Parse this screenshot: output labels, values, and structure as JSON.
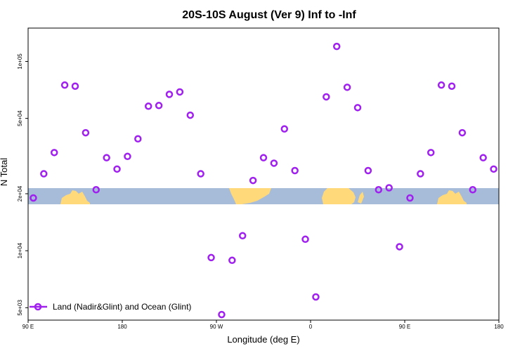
{
  "chart_data": {
    "type": "scatter",
    "title": "20S-10S August (Ver 9)   Inf to -Inf",
    "xlabel": "Longitude (deg E)",
    "ylabel": "N Total",
    "x_ticks": [
      {
        "value": 90,
        "label": "90 E"
      },
      {
        "value": 180,
        "label": "180"
      },
      {
        "value": 270,
        "label": "90 W"
      },
      {
        "value": 360,
        "label": "0"
      },
      {
        "value": 450,
        "label": "90 E"
      },
      {
        "value": 540,
        "label": "180"
      }
    ],
    "xlim": [
      90,
      540
    ],
    "y_scale": "log",
    "y_ticks": [
      {
        "value": 5000,
        "label": "5e+03"
      },
      {
        "value": 10000,
        "label": "1e+04"
      },
      {
        "value": 20000,
        "label": "2e+04"
      },
      {
        "value": 50000,
        "label": "5e+04"
      },
      {
        "value": 100000,
        "label": "1e+05"
      }
    ],
    "ylim": [
      4300,
      150000
    ],
    "grid": false,
    "legend_position": "bottom-left",
    "series": [
      {
        "name": "Land (Nadir&Glint) and Ocean (Glint)",
        "color": "#a020f0",
        "marker": "open-circle",
        "x": [
          95,
          105,
          115,
          125,
          135,
          145,
          155,
          165,
          175,
          185,
          195,
          205,
          215,
          225,
          235,
          245,
          255,
          265,
          275,
          285,
          295,
          305,
          315,
          325,
          335,
          345,
          355,
          365,
          375,
          385,
          395,
          405,
          415,
          425,
          435,
          445,
          455,
          465,
          475,
          485,
          495,
          505,
          515,
          525,
          535
        ],
        "y": [
          19000,
          25500,
          33000,
          75000,
          74000,
          42000,
          21000,
          31000,
          27000,
          31500,
          39000,
          58000,
          58500,
          67000,
          69000,
          52000,
          25500,
          9200,
          4600,
          8900,
          12000,
          23500,
          31000,
          29000,
          44000,
          26500,
          11500,
          5700,
          65000,
          120000,
          73000,
          57000,
          26500,
          21000,
          21500,
          10500,
          19000,
          25500,
          33000,
          75000,
          74000,
          42000,
          21000,
          31000,
          27000
        ]
      }
    ],
    "background_map": {
      "ocean_color": "#a7bcd9",
      "land_color": "#ffd97a"
    }
  }
}
